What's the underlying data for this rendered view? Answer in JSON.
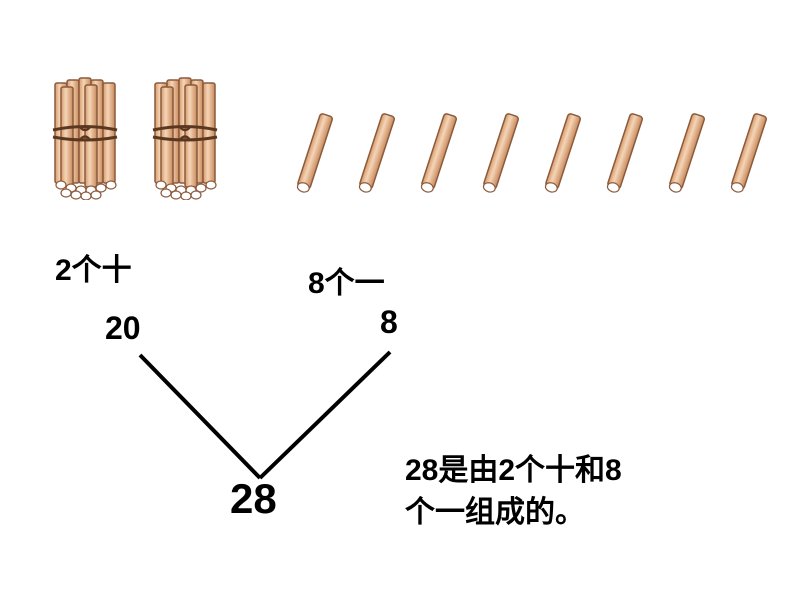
{
  "labels": {
    "tens": "2个十",
    "ones": "8个一",
    "value_tens": "20",
    "value_ones": "8",
    "total": "28",
    "explanation_line1": "28是由2个十和8",
    "explanation_line2": "个一组成的。"
  },
  "visual": {
    "bundle_count": 2,
    "single_stick_count": 8,
    "stick_fill": "#e8b896",
    "stick_stroke": "#8b5a3c",
    "stick_highlight": "#f4d5b8",
    "tie_color": "#5a3820",
    "end_fill": "#ffffff",
    "end_stroke": "#8b5a3c",
    "line_color": "#000000",
    "line_width": 4,
    "text_color": "#000000",
    "background": "#ffffff",
    "label_fontsize": 30,
    "num_fontsize": 32,
    "total_fontsize": 42
  }
}
